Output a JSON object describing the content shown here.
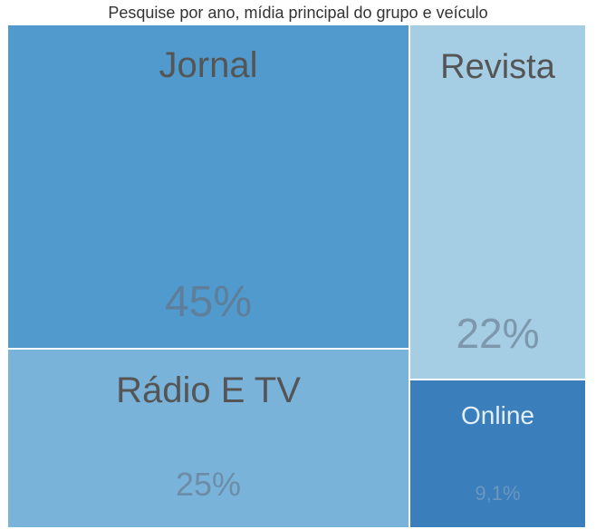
{
  "chart_data": {
    "type": "treemap",
    "title": "Pesquise por ano, mídia principal do grupo e veículo",
    "items": [
      {
        "key": "jornal",
        "name": "Jornal",
        "value": 45,
        "value_label": "45%",
        "color": "#519ACD"
      },
      {
        "key": "revista",
        "name": "Revista",
        "value": 22,
        "value_label": "22%",
        "color": "#A5CDE3"
      },
      {
        "key": "radiotv",
        "name": "Rádio E TV",
        "value": 25,
        "value_label": "25%",
        "color": "#7AB3DA"
      },
      {
        "key": "online",
        "name": "Online",
        "value": 9.1,
        "value_label": "9,1%",
        "color": "#3A7EBB"
      }
    ]
  }
}
